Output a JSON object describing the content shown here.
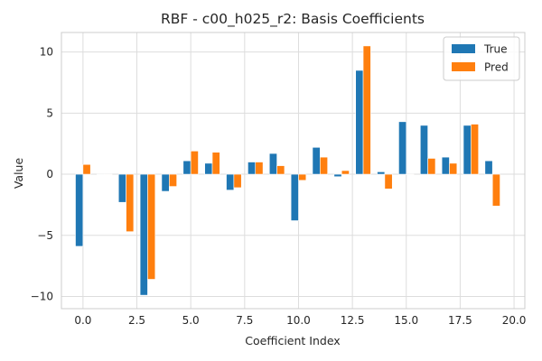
{
  "chart_data": {
    "type": "bar",
    "title": "RBF - c00_h025_r2: Basis Coefficients",
    "xlabel": "Coefficient Index",
    "ylabel": "Value",
    "xlim": [
      -1.0,
      20.5
    ],
    "ylim": [
      -11.0,
      11.6
    ],
    "xticks": [
      0.0,
      2.5,
      5.0,
      7.5,
      10.0,
      12.5,
      15.0,
      17.5,
      20.0
    ],
    "xtick_labels": [
      "0.0",
      "2.5",
      "5.0",
      "7.5",
      "10.0",
      "12.5",
      "15.0",
      "17.5",
      "20.0"
    ],
    "yticks": [
      -10,
      -5,
      0,
      5,
      10
    ],
    "ytick_labels": [
      "−10",
      "−5",
      "0",
      "5",
      "10"
    ],
    "grid": true,
    "legend_position": "top-right",
    "categories": [
      0,
      1,
      2,
      3,
      4,
      5,
      6,
      7,
      8,
      9,
      10,
      11,
      12,
      13,
      14,
      15,
      16,
      17,
      18,
      19
    ],
    "series": [
      {
        "name": "True",
        "color": "#1f77b4",
        "values": [
          -5.9,
          0.0,
          -2.3,
          -9.9,
          -1.4,
          1.1,
          0.9,
          -1.3,
          1.0,
          1.7,
          -3.8,
          2.2,
          -0.2,
          8.5,
          0.2,
          4.3,
          4.0,
          1.4,
          4.0,
          1.1
        ]
      },
      {
        "name": "Pred",
        "color": "#ff7f0e",
        "values": [
          0.8,
          0.0,
          -4.7,
          -8.6,
          -1.0,
          1.9,
          1.8,
          -1.1,
          1.0,
          0.7,
          -0.5,
          1.4,
          0.3,
          10.5,
          -1.2,
          0.0,
          1.3,
          0.9,
          4.1,
          -2.6
        ]
      }
    ]
  }
}
